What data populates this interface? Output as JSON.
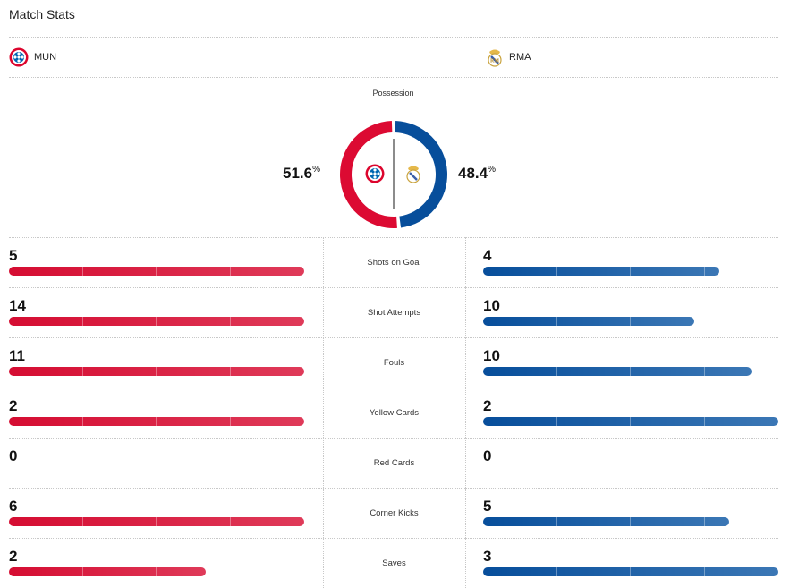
{
  "title": "Match Stats",
  "teams": {
    "home": {
      "abbr": "MUN",
      "crest": "bayern-crest-icon",
      "color": "#d50d32"
    },
    "away": {
      "abbr": "RMA",
      "crest": "real-madrid-crest-icon",
      "color": "#074e9b"
    }
  },
  "possession": {
    "label": "Possession",
    "home": "51.6",
    "away": "48.4",
    "unit": "%"
  },
  "stats": [
    {
      "label": "Shots on Goal",
      "home": "5",
      "away": "4",
      "home_fill": 1.0,
      "away_fill": 0.8
    },
    {
      "label": "Shot Attempts",
      "home": "14",
      "away": "10",
      "home_fill": 1.0,
      "away_fill": 0.714
    },
    {
      "label": "Fouls",
      "home": "11",
      "away": "10",
      "home_fill": 1.0,
      "away_fill": 0.909
    },
    {
      "label": "Yellow Cards",
      "home": "2",
      "away": "2",
      "home_fill": 1.0,
      "away_fill": 1.0
    },
    {
      "label": "Red Cards",
      "home": "0",
      "away": "0",
      "home_fill": 0,
      "away_fill": 0
    },
    {
      "label": "Corner Kicks",
      "home": "6",
      "away": "5",
      "home_fill": 1.0,
      "away_fill": 0.833
    },
    {
      "label": "Saves",
      "home": "2",
      "away": "3",
      "home_fill": 0.667,
      "away_fill": 1.0
    }
  ]
}
